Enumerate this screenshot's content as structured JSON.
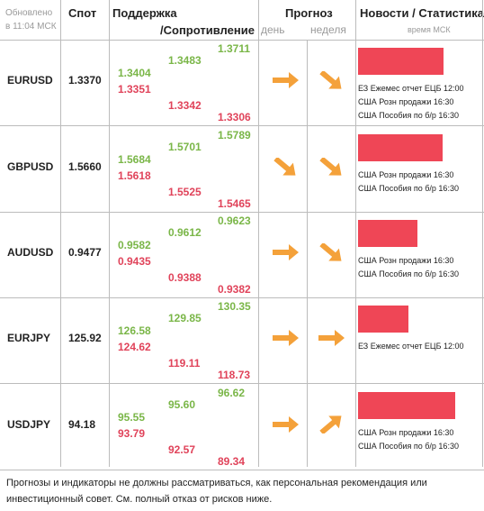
{
  "header": {
    "updated_line1": "Обновлено",
    "updated_line2": "в 11:04 МСК",
    "spot": "Спот",
    "support": "Поддержка",
    "resistance": "/Сопротивление",
    "forecast": "Прогноз",
    "day": "день",
    "week": "неделя",
    "news": "Новости / Статистика",
    "time": "время МСК"
  },
  "rows": [
    {
      "pair": "EURUSD",
      "spot": "1.3370",
      "s1": "1.3404",
      "s2": "1.3351",
      "r1": "1.3483",
      "r2": "1.3342",
      "r3": "1.3711",
      "r4": "1.3306",
      "day_arrow": "right-arrow-icon",
      "week_arrow": "down-right-arrow-icon",
      "bar_level": 0.79,
      "news": [
        "ЕЗ Ежемес отчет ЕЦБ 12:00",
        "США Розн продажи 16:30",
        "США Пособия по б/р 16:30"
      ]
    },
    {
      "pair": "GBPUSD",
      "spot": "1.5660",
      "s1": "1.5684",
      "s2": "1.5618",
      "r1": "1.5701",
      "r2": "1.5525",
      "r3": "1.5789",
      "r4": "1.5465",
      "day_arrow": "down-right-arrow-icon",
      "week_arrow": "down-right-arrow-icon",
      "bar_level": 0.78,
      "news": [
        "США Розн продажи 16:30",
        "США Пособия по б/р 16:30"
      ]
    },
    {
      "pair": "AUDUSD",
      "spot": "0.9477",
      "s1": "0.9582",
      "s2": "0.9435",
      "r1": "0.9612",
      "r2": "0.9388",
      "r3": "0.9623",
      "r4": "0.9382",
      "day_arrow": "right-arrow-icon",
      "week_arrow": "down-right-arrow-icon",
      "bar_level": 0.55,
      "news": [
        "США Розн продажи 16:30",
        "США Пособия по б/р 16:30"
      ]
    },
    {
      "pair": "EURJPY",
      "spot": "125.92",
      "s1": "126.58",
      "s2": "124.62",
      "r1": "129.85",
      "r2": "119.11",
      "r3": "130.35",
      "r4": "118.73",
      "day_arrow": "right-arrow-icon",
      "week_arrow": "right-arrow-icon",
      "bar_level": 0.47,
      "news": [
        "ЕЗ Ежемес отчет ЕЦБ 12:00"
      ]
    },
    {
      "pair": "USDJPY",
      "spot": "94.18",
      "s1": "95.55",
      "s2": "93.79",
      "r1": "95.60",
      "r2": "92.57",
      "r3": "96.62",
      "r4": "89.34",
      "day_arrow": "right-arrow-icon",
      "week_arrow": "up-right-arrow-icon",
      "bar_level": 0.9,
      "news": [
        "США Розн продажи 16:30",
        "США Пособия по б/р 16:30"
      ]
    }
  ],
  "footer_line1": "Прогнозы и индикаторы не должны рассматриваться, как персональная рекомендация или",
  "footer_line2": "инвестиционный совет. См. полный отказ от рисков ниже.",
  "colors": {
    "support": "#7ab648",
    "resistance": "#e0435a",
    "arrow": "#f4a13a",
    "bar": "#ef4656"
  }
}
